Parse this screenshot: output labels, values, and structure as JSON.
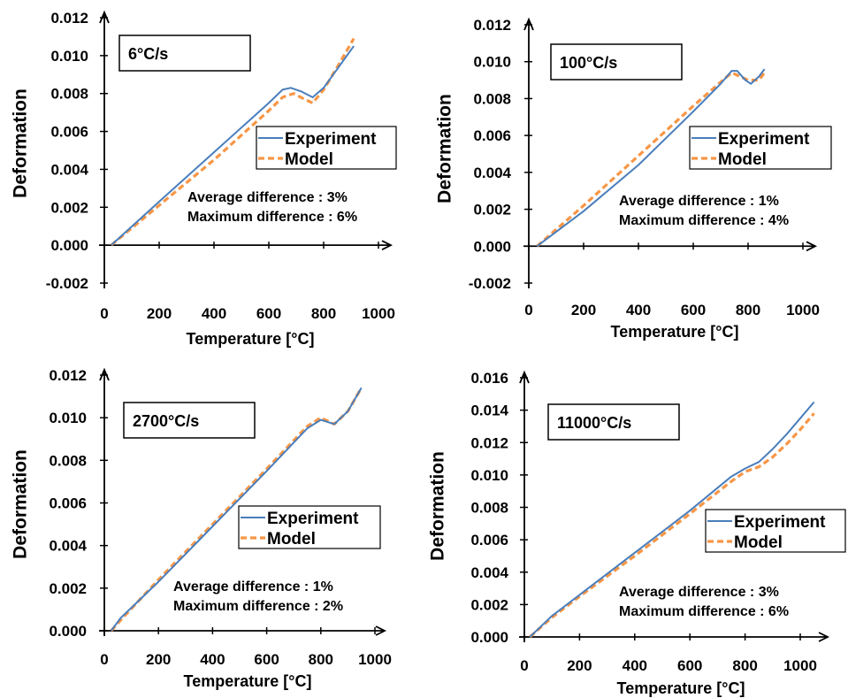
{
  "colors": {
    "experiment": "#4a7ebb",
    "model": "#f79646",
    "axis": "#000000"
  },
  "chart_data": [
    {
      "type": "line",
      "panel_label": "6°C/s",
      "xlabel": "Temperature [°C]",
      "ylabel": "Deformation",
      "xlim": [
        0,
        1000
      ],
      "ylim": [
        -0.002,
        0.012
      ],
      "xticks": [
        "0",
        "200",
        "400",
        "600",
        "800",
        "1000"
      ],
      "yticks": [
        "-0.002",
        "0.000",
        "0.002",
        "0.004",
        "0.006",
        "0.008",
        "0.010",
        "0.012"
      ],
      "annotations": [
        "Average difference : 3%",
        "Maximum difference : 6%"
      ],
      "series": [
        {
          "name": "Experiment",
          "style": "solid",
          "x": [
            25,
            200,
            400,
            600,
            650,
            680,
            720,
            760,
            800,
            850,
            910
          ],
          "y": [
            0,
            0.0023,
            0.0049,
            0.0075,
            0.0082,
            0.0083,
            0.0081,
            0.0078,
            0.0083,
            0.0093,
            0.0105
          ]
        },
        {
          "name": "Model",
          "style": "dashed",
          "x": [
            25,
            200,
            400,
            600,
            650,
            690,
            730,
            760,
            800,
            850,
            910
          ],
          "y": [
            0,
            0.0021,
            0.0045,
            0.0071,
            0.0078,
            0.008,
            0.0077,
            0.0075,
            0.0082,
            0.0094,
            0.0109
          ]
        }
      ]
    },
    {
      "type": "line",
      "panel_label": "100°C/s",
      "xlabel": "Temperature [°C]",
      "ylabel": "Deformation",
      "xlim": [
        0,
        1000
      ],
      "ylim": [
        -0.002,
        0.012
      ],
      "xticks": [
        "0",
        "200",
        "400",
        "600",
        "800",
        "1000"
      ],
      "yticks": [
        "-0.002",
        "0.000",
        "0.002",
        "0.004",
        "0.006",
        "0.008",
        "0.010",
        "0.012"
      ],
      "annotations": [
        "Average difference : 1%",
        "Maximum difference : 4%"
      ],
      "series": [
        {
          "name": "Experiment",
          "style": "solid",
          "x": [
            30,
            200,
            400,
            600,
            700,
            740,
            760,
            790,
            810,
            840,
            860
          ],
          "y": [
            0,
            0.0019,
            0.0044,
            0.0073,
            0.0088,
            0.0095,
            0.0095,
            0.009,
            0.0088,
            0.0092,
            0.0096
          ]
        },
        {
          "name": "Model",
          "style": "dashed",
          "x": [
            30,
            200,
            400,
            600,
            700,
            740,
            770,
            800,
            840,
            860
          ],
          "y": [
            0,
            0.0022,
            0.0049,
            0.0076,
            0.0089,
            0.0094,
            0.0092,
            0.009,
            0.009,
            0.0094
          ]
        }
      ]
    },
    {
      "type": "line",
      "panel_label": "2700°C/s",
      "xlabel": "Temperature [°C]",
      "ylabel": "Deformation",
      "xlim": [
        0,
        1000
      ],
      "ylim": [
        0,
        0.012
      ],
      "xticks": [
        "0",
        "200",
        "400",
        "600",
        "800",
        "1000"
      ],
      "yticks": [
        "0.000",
        "0.002",
        "0.004",
        "0.006",
        "0.008",
        "0.010",
        "0.012"
      ],
      "annotations": [
        "Average difference : 1%",
        "Maximum difference : 2%"
      ],
      "series": [
        {
          "name": "Experiment",
          "style": "solid",
          "x": [
            25,
            60,
            200,
            400,
            600,
            750,
            800,
            850,
            900,
            950
          ],
          "y": [
            0,
            0.0006,
            0.0023,
            0.0049,
            0.0075,
            0.0095,
            0.0099,
            0.0097,
            0.0103,
            0.0114
          ]
        },
        {
          "name": "Model",
          "style": "dashed",
          "x": [
            25,
            60,
            200,
            400,
            600,
            750,
            800,
            850,
            900,
            950
          ],
          "y": [
            0,
            0.0005,
            0.0024,
            0.005,
            0.0076,
            0.0096,
            0.01,
            0.0097,
            0.0103,
            0.0114
          ]
        }
      ]
    },
    {
      "type": "line",
      "panel_label": "11000°C/s",
      "xlabel": "Temperature [°C]",
      "ylabel": "Deformation",
      "xlim": [
        0,
        1000
      ],
      "ylim": [
        0,
        0.016
      ],
      "xticks": [
        "0",
        "200",
        "400",
        "600",
        "800",
        "1000"
      ],
      "yticks": [
        "0.000",
        "0.002",
        "0.004",
        "0.006",
        "0.008",
        "0.010",
        "0.012",
        "0.014",
        "0.016"
      ],
      "annotations": [
        "Average difference : 3%",
        "Maximum difference : 6%"
      ],
      "series": [
        {
          "name": "Experiment",
          "style": "solid",
          "x": [
            20,
            100,
            200,
            400,
            600,
            750,
            800,
            850,
            900,
            950,
            1000,
            1050
          ],
          "y": [
            0,
            0.0013,
            0.0026,
            0.0052,
            0.0078,
            0.0099,
            0.0104,
            0.0108,
            0.0116,
            0.0125,
            0.0135,
            0.0145
          ]
        },
        {
          "name": "Model",
          "style": "dashed",
          "x": [
            20,
            100,
            200,
            400,
            600,
            750,
            800,
            850,
            900,
            950,
            1000,
            1050
          ],
          "y": [
            0,
            0.0012,
            0.0025,
            0.005,
            0.0076,
            0.0096,
            0.0102,
            0.0105,
            0.0111,
            0.0119,
            0.0128,
            0.0138
          ]
        }
      ]
    }
  ]
}
